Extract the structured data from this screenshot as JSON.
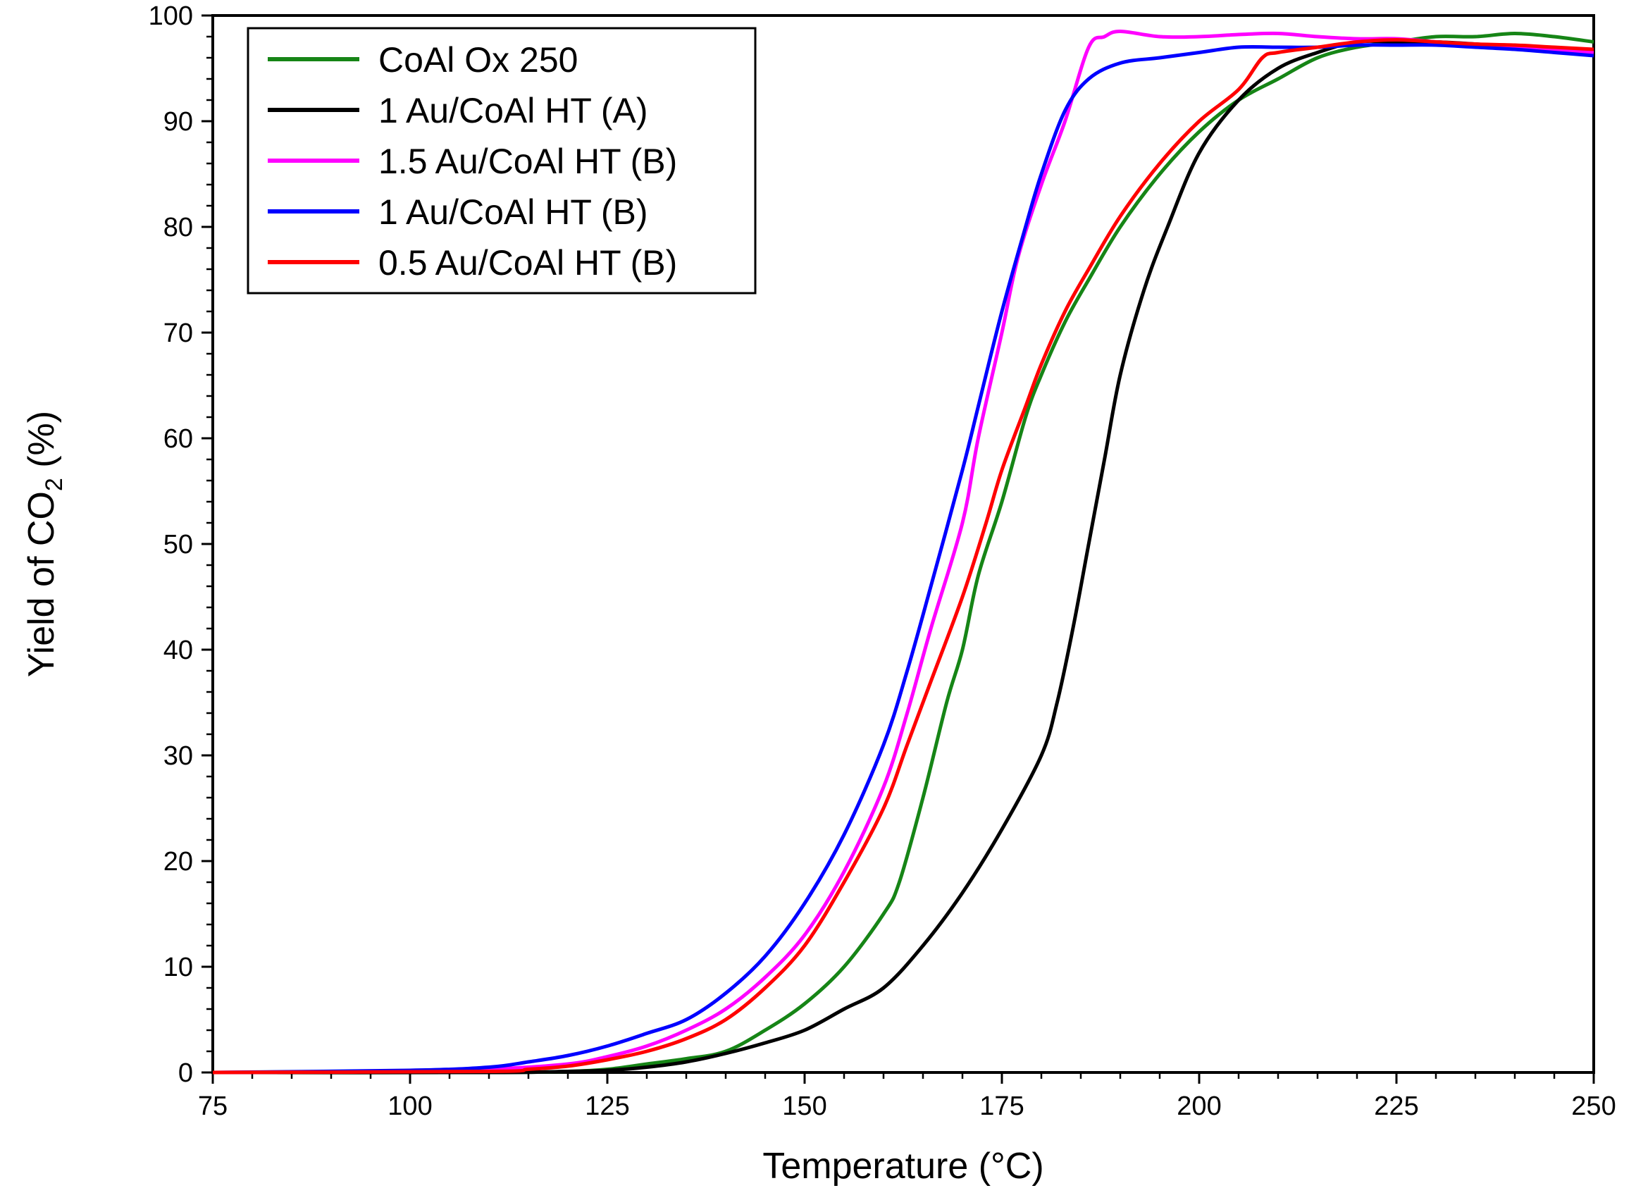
{
  "chart_data": {
    "type": "line",
    "title": "",
    "xlabel": "Temperature (°C)",
    "ylabel_main": "Yield of CO",
    "ylabel_sub": "2",
    "ylabel_tail": " (%)",
    "xlim": [
      75,
      250
    ],
    "ylim": [
      0,
      100
    ],
    "x_ticks": [
      75,
      100,
      125,
      150,
      175,
      200,
      225,
      250
    ],
    "y_ticks": [
      0,
      10,
      20,
      30,
      40,
      50,
      60,
      70,
      80,
      90,
      100
    ],
    "legend_position": "top-left",
    "series": [
      {
        "name": "CoAl Ox 250",
        "color": "#168516",
        "points": [
          [
            75,
            0
          ],
          [
            110,
            0
          ],
          [
            120,
            0.1
          ],
          [
            125,
            0.3
          ],
          [
            130,
            0.8
          ],
          [
            135,
            1.3
          ],
          [
            140,
            2
          ],
          [
            145,
            4
          ],
          [
            150,
            6.5
          ],
          [
            155,
            10
          ],
          [
            160,
            15
          ],
          [
            162,
            18
          ],
          [
            165,
            26
          ],
          [
            168,
            35
          ],
          [
            170,
            40
          ],
          [
            172,
            47
          ],
          [
            175,
            54
          ],
          [
            178,
            62
          ],
          [
            180,
            66
          ],
          [
            183,
            71
          ],
          [
            186,
            75
          ],
          [
            190,
            80
          ],
          [
            195,
            85
          ],
          [
            200,
            89
          ],
          [
            205,
            92
          ],
          [
            210,
            94
          ],
          [
            215,
            96
          ],
          [
            220,
            97
          ],
          [
            225,
            97.5
          ],
          [
            230,
            98
          ],
          [
            235,
            98
          ],
          [
            240,
            98.3
          ],
          [
            245,
            98
          ],
          [
            250,
            97.5
          ]
        ]
      },
      {
        "name": "1 Au/CoAl HT (A)",
        "color": "#000000",
        "points": [
          [
            75,
            0
          ],
          [
            110,
            0
          ],
          [
            120,
            0.1
          ],
          [
            125,
            0.2
          ],
          [
            130,
            0.5
          ],
          [
            135,
            1
          ],
          [
            140,
            1.8
          ],
          [
            145,
            2.8
          ],
          [
            150,
            4
          ],
          [
            155,
            6
          ],
          [
            160,
            8
          ],
          [
            165,
            12
          ],
          [
            170,
            17
          ],
          [
            175,
            23
          ],
          [
            180,
            30
          ],
          [
            182,
            35
          ],
          [
            184,
            42
          ],
          [
            186,
            50
          ],
          [
            188,
            58
          ],
          [
            190,
            66
          ],
          [
            193,
            74
          ],
          [
            196,
            80
          ],
          [
            200,
            87
          ],
          [
            205,
            92
          ],
          [
            210,
            95
          ],
          [
            215,
            96.5
          ],
          [
            220,
            97.5
          ],
          [
            225,
            97.5
          ],
          [
            230,
            97.5
          ],
          [
            235,
            97.3
          ],
          [
            240,
            97
          ],
          [
            245,
            96.7
          ],
          [
            250,
            96.3
          ]
        ]
      },
      {
        "name": "1.5 Au/CoAl HT (B)",
        "color": "#ff00ff",
        "points": [
          [
            75,
            0
          ],
          [
            100,
            0.1
          ],
          [
            110,
            0.3
          ],
          [
            120,
            0.8
          ],
          [
            125,
            1.5
          ],
          [
            130,
            2.5
          ],
          [
            135,
            4
          ],
          [
            140,
            6
          ],
          [
            145,
            9
          ],
          [
            150,
            13
          ],
          [
            155,
            19
          ],
          [
            160,
            27
          ],
          [
            163,
            34
          ],
          [
            166,
            42
          ],
          [
            170,
            52
          ],
          [
            172,
            60
          ],
          [
            175,
            70
          ],
          [
            177,
            77
          ],
          [
            180,
            84
          ],
          [
            183,
            90
          ],
          [
            186,
            97
          ],
          [
            188,
            98
          ],
          [
            190,
            98.5
          ],
          [
            195,
            98
          ],
          [
            200,
            98
          ],
          [
            205,
            98.2
          ],
          [
            210,
            98.3
          ],
          [
            215,
            98
          ],
          [
            220,
            97.8
          ],
          [
            225,
            97.8
          ],
          [
            230,
            97.5
          ],
          [
            235,
            97.2
          ],
          [
            240,
            97
          ],
          [
            245,
            96.8
          ],
          [
            250,
            96.5
          ]
        ]
      },
      {
        "name": "1 Au/CoAl HT (B)",
        "color": "#0000ff",
        "points": [
          [
            75,
            0
          ],
          [
            100,
            0.2
          ],
          [
            110,
            0.5
          ],
          [
            115,
            1
          ],
          [
            120,
            1.6
          ],
          [
            125,
            2.5
          ],
          [
            130,
            3.7
          ],
          [
            135,
            5
          ],
          [
            140,
            7.5
          ],
          [
            145,
            11
          ],
          [
            150,
            16
          ],
          [
            155,
            22.5
          ],
          [
            160,
            31
          ],
          [
            163,
            38
          ],
          [
            166,
            46
          ],
          [
            170,
            57
          ],
          [
            172,
            63
          ],
          [
            175,
            72
          ],
          [
            178,
            80
          ],
          [
            180,
            85
          ],
          [
            183,
            91
          ],
          [
            186,
            94
          ],
          [
            190,
            95.5
          ],
          [
            195,
            96
          ],
          [
            200,
            96.5
          ],
          [
            205,
            97
          ],
          [
            210,
            97
          ],
          [
            215,
            97
          ],
          [
            220,
            97.2
          ],
          [
            225,
            97.2
          ],
          [
            230,
            97.2
          ],
          [
            235,
            97
          ],
          [
            240,
            96.8
          ],
          [
            245,
            96.5
          ],
          [
            250,
            96.2
          ]
        ]
      },
      {
        "name": "0.5 Au/CoAl HT (B)",
        "color": "#ff0000",
        "points": [
          [
            75,
            0
          ],
          [
            110,
            0.1
          ],
          [
            115,
            0.3
          ],
          [
            120,
            0.6
          ],
          [
            125,
            1.2
          ],
          [
            130,
            2
          ],
          [
            135,
            3.2
          ],
          [
            140,
            5
          ],
          [
            145,
            8
          ],
          [
            150,
            12
          ],
          [
            155,
            18
          ],
          [
            160,
            25
          ],
          [
            163,
            31
          ],
          [
            166,
            37
          ],
          [
            170,
            45
          ],
          [
            173,
            52
          ],
          [
            175,
            57
          ],
          [
            178,
            63
          ],
          [
            180,
            67
          ],
          [
            183,
            72
          ],
          [
            186,
            76
          ],
          [
            190,
            81
          ],
          [
            195,
            86
          ],
          [
            200,
            90
          ],
          [
            205,
            93
          ],
          [
            208,
            96
          ],
          [
            210,
            96.5
          ],
          [
            215,
            97
          ],
          [
            220,
            97.5
          ],
          [
            225,
            97.7
          ],
          [
            230,
            97.5
          ],
          [
            235,
            97.3
          ],
          [
            240,
            97.2
          ],
          [
            245,
            97
          ],
          [
            250,
            96.8
          ]
        ]
      }
    ]
  }
}
